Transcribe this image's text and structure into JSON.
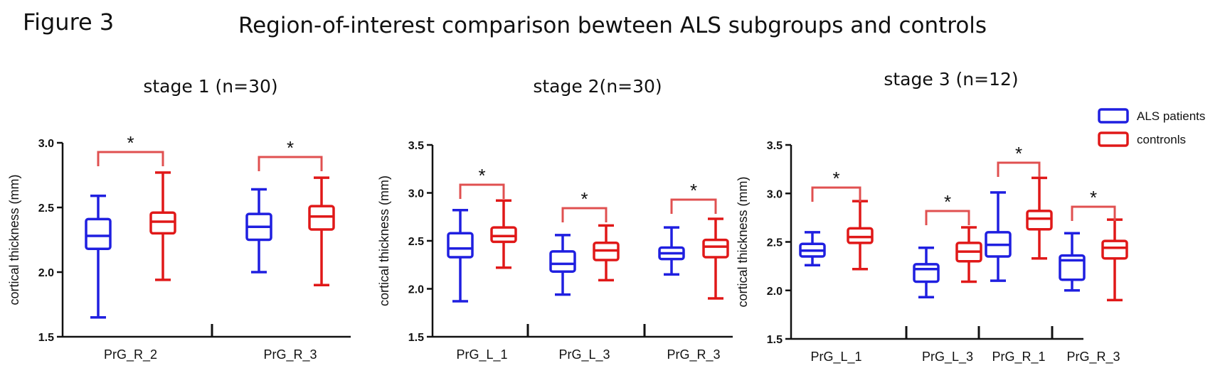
{
  "figure_label": "Figure 3",
  "title": "Region-of-interest comparison bewteen ALS subgroups and controls",
  "legend": [
    {
      "label": "ALS patients",
      "color": "#1f1fe0"
    },
    {
      "label": "contronls",
      "color": "#e01818"
    }
  ],
  "colors": {
    "als": "#1f1fe0",
    "control": "#e01818",
    "bracket": "#e05050",
    "axis": "#111111"
  },
  "chart_data": [
    {
      "type": "box",
      "title": "stage 1 (n=30)",
      "ylabel": "cortical thickness (mm)",
      "ylim": [
        1.5,
        3.0
      ],
      "yticks": [
        "1.5",
        "2.0",
        "2.5",
        "3.0"
      ],
      "categories": [
        "PrG_R_2",
        "PrG_R_3"
      ],
      "series": [
        {
          "name": "ALS patients",
          "boxes": [
            {
              "min": 1.65,
              "q1": 2.18,
              "median": 2.28,
              "q3": 2.41,
              "max": 2.59
            },
            {
              "min": 2.0,
              "q1": 2.25,
              "median": 2.35,
              "q3": 2.45,
              "max": 2.64
            }
          ]
        },
        {
          "name": "contronls",
          "boxes": [
            {
              "min": 1.94,
              "q1": 2.3,
              "median": 2.39,
              "q3": 2.46,
              "max": 2.77
            },
            {
              "min": 1.9,
              "q1": 2.33,
              "median": 2.43,
              "q3": 2.51,
              "max": 2.73
            }
          ]
        }
      ],
      "annotations": [
        "*",
        "*"
      ]
    },
    {
      "type": "box",
      "title": "stage 2(n=30)",
      "ylabel": "cortical thickness (mm)",
      "ylim": [
        1.5,
        3.5
      ],
      "yticks": [
        "1.5",
        "2.0",
        "2.5",
        "3.0",
        "3.5"
      ],
      "categories": [
        "PrG_L_1",
        "PrG_L_3",
        "PrG_R_3"
      ],
      "series": [
        {
          "name": "ALS patients",
          "boxes": [
            {
              "min": 1.87,
              "q1": 2.33,
              "median": 2.42,
              "q3": 2.58,
              "max": 2.82
            },
            {
              "min": 1.94,
              "q1": 2.18,
              "median": 2.26,
              "q3": 2.39,
              "max": 2.56
            },
            {
              "min": 2.15,
              "q1": 2.31,
              "median": 2.37,
              "q3": 2.43,
              "max": 2.64
            }
          ]
        },
        {
          "name": "contronls",
          "boxes": [
            {
              "min": 2.22,
              "q1": 2.49,
              "median": 2.55,
              "q3": 2.64,
              "max": 2.92
            },
            {
              "min": 2.09,
              "q1": 2.3,
              "median": 2.4,
              "q3": 2.48,
              "max": 2.66
            },
            {
              "min": 1.9,
              "q1": 2.33,
              "median": 2.44,
              "q3": 2.51,
              "max": 2.73
            }
          ]
        }
      ],
      "annotations": [
        "*",
        "*",
        "*"
      ]
    },
    {
      "type": "box",
      "title": "stage 3 (n=12)",
      "ylabel": "cortical thickness (mm)",
      "ylim": [
        1.5,
        3.5
      ],
      "yticks": [
        "1.5",
        "2.0",
        "2.5",
        "3.0",
        "3.5"
      ],
      "categories": [
        "PrG_L_1",
        "PrG_L_3",
        "PrG_R_1",
        "PrG_R_3"
      ],
      "series": [
        {
          "name": "ALS patients",
          "boxes": [
            {
              "min": 2.26,
              "q1": 2.35,
              "median": 2.41,
              "q3": 2.48,
              "max": 2.6
            },
            {
              "min": 1.93,
              "q1": 2.09,
              "median": 2.22,
              "q3": 2.27,
              "max": 2.44
            },
            {
              "min": 2.1,
              "q1": 2.35,
              "median": 2.47,
              "q3": 2.6,
              "max": 3.01
            },
            {
              "min": 2.0,
              "q1": 2.11,
              "median": 2.31,
              "q3": 2.36,
              "max": 2.59
            }
          ]
        },
        {
          "name": "contronls",
          "boxes": [
            {
              "min": 2.22,
              "q1": 2.49,
              "median": 2.55,
              "q3": 2.64,
              "max": 2.92
            },
            {
              "min": 2.09,
              "q1": 2.3,
              "median": 2.4,
              "q3": 2.49,
              "max": 2.65
            },
            {
              "min": 2.33,
              "q1": 2.63,
              "median": 2.74,
              "q3": 2.82,
              "max": 3.16
            },
            {
              "min": 1.9,
              "q1": 2.33,
              "median": 2.44,
              "q3": 2.51,
              "max": 2.73
            }
          ]
        }
      ],
      "annotations": [
        "*",
        "*",
        "*",
        "*"
      ]
    }
  ]
}
